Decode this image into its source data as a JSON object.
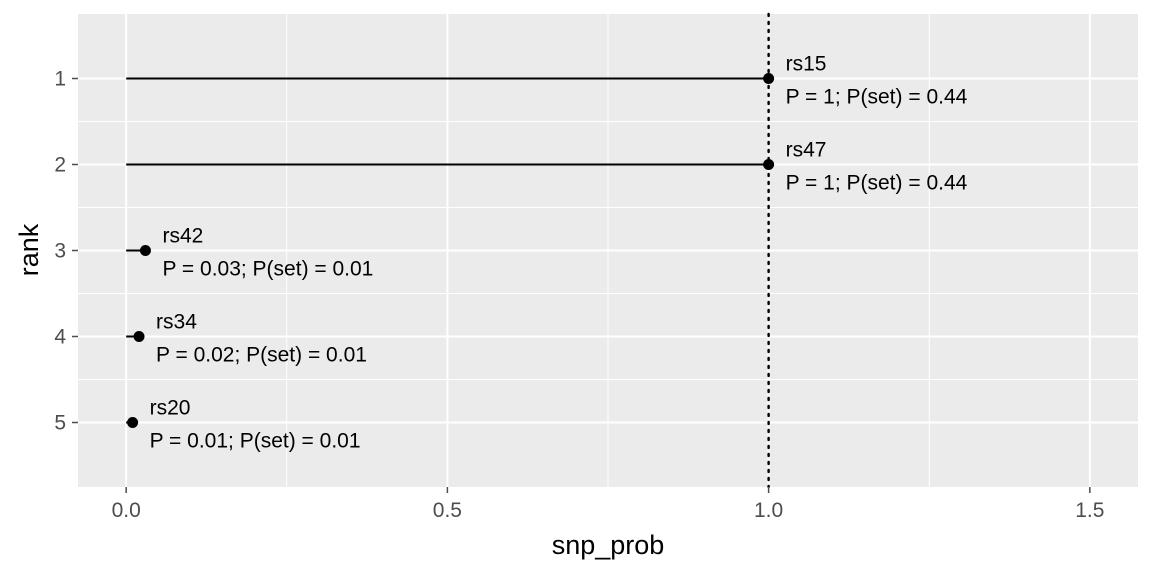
{
  "chart_data": {
    "type": "lollipop",
    "xlabel": "snp_prob",
    "ylabel": "rank",
    "xlim": [
      -0.075,
      1.575
    ],
    "ylim": [
      0.25,
      5.75
    ],
    "x_ticks": [
      0,
      0.5,
      1.0,
      1.5
    ],
    "x_tick_labels": [
      "0.0",
      "0.5",
      "1.0",
      "1.5"
    ],
    "y_ticks": [
      1,
      2,
      3,
      4,
      5
    ],
    "y_tick_labels": [
      "1",
      "2",
      "3",
      "4",
      "5"
    ],
    "reference_line": {
      "x": 1.0,
      "style": "dotted"
    },
    "grid": true,
    "points": [
      {
        "rank": 1,
        "snp": "rs15",
        "snp_prob": 1.0,
        "label": "P = 1; P(set) = 0.44"
      },
      {
        "rank": 2,
        "snp": "rs47",
        "snp_prob": 1.0,
        "label": "P = 1; P(set) = 0.44"
      },
      {
        "rank": 3,
        "snp": "rs42",
        "snp_prob": 0.03,
        "label": "P = 0.03; P(set) = 0.01"
      },
      {
        "rank": 4,
        "snp": "rs34",
        "snp_prob": 0.02,
        "label": "P = 0.02; P(set) = 0.01"
      },
      {
        "rank": 5,
        "snp": "rs20",
        "snp_prob": 0.01,
        "label": "P = 0.01; P(set) = 0.01"
      }
    ],
    "colors": {
      "panel_background": "#ebebeb",
      "grid": "#ffffff",
      "segment": "#000000",
      "point": "#000000",
      "tick": "#4d4d4d"
    }
  }
}
